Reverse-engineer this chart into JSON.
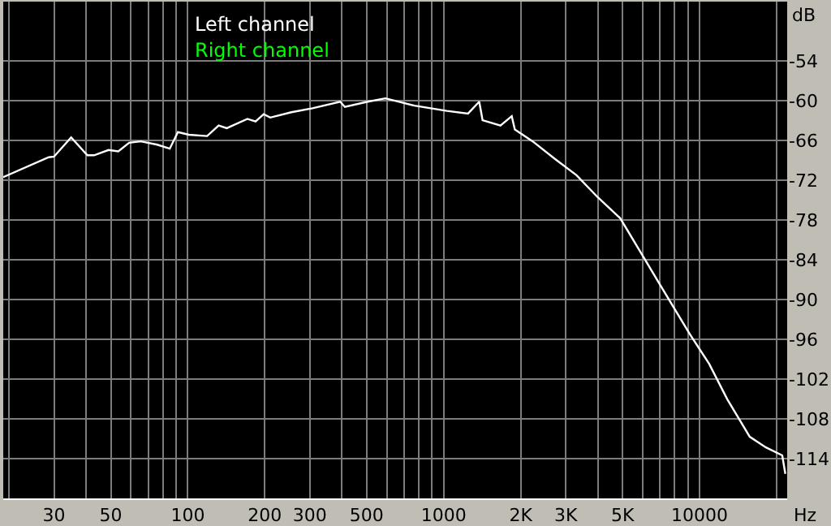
{
  "chart_data": {
    "type": "line",
    "xlabel": "Hz",
    "ylabel": "dB",
    "log": "x",
    "grid": true,
    "legend": "top left",
    "marker": "none",
    "line_style": "solid",
    "xlim": [
      19,
      22000
    ],
    "ylim": [
      -120,
      -45
    ],
    "xticks": [
      {
        "value": 20,
        "label": null
      },
      30,
      {
        "value": 40,
        "label": null
      },
      50,
      {
        "value": 60,
        "label": null
      },
      {
        "value": 70,
        "label": null
      },
      {
        "value": 80,
        "label": null
      },
      {
        "value": 90,
        "label": null
      },
      100,
      200,
      300,
      {
        "value": 400,
        "label": null
      },
      500,
      {
        "value": 600,
        "label": null
      },
      {
        "value": 700,
        "label": null
      },
      {
        "value": 800,
        "label": null
      },
      {
        "value": 900,
        "label": null
      },
      1000,
      {
        "value": 2000,
        "label": "2K"
      },
      {
        "value": 3000,
        "label": "3K"
      },
      {
        "value": 4000,
        "label": null
      },
      {
        "value": 5000,
        "label": "5K"
      },
      {
        "value": 6000,
        "label": null
      },
      {
        "value": 7000,
        "label": null
      },
      {
        "value": 8000,
        "label": null
      },
      {
        "value": 9000,
        "label": null
      },
      10000,
      {
        "value": 20000,
        "label": null
      }
    ],
    "yticks": [
      -54,
      -60,
      -66,
      -72,
      -78,
      -84,
      -90,
      -96,
      -102,
      -108,
      -114
    ],
    "x": [
      19,
      28.6,
      30,
      35,
      40.5,
      43,
      49,
      53.5,
      59,
      65.5,
      76,
      85,
      91.5,
      101,
      119,
      132,
      142,
      171,
      184,
      198,
      210,
      254,
      307,
      394,
      411,
      505,
      592,
      769,
      1030,
      1245,
      1377,
      1419,
      1667,
      1845,
      1897,
      2228,
      2733,
      3305,
      3992,
      4897,
      5918,
      7149,
      9160,
      10910,
      12820,
      15710,
      18170,
      21040,
      21640
    ],
    "series": [
      {
        "name": "Right channel",
        "color": "#00ff00",
        "values": [
          null,
          null,
          null,
          null,
          null,
          null,
          null,
          null,
          null,
          null,
          null,
          null,
          null,
          null,
          null,
          null,
          null,
          null,
          null,
          null,
          null,
          null,
          null,
          null,
          null,
          null,
          null,
          null,
          null,
          null,
          null,
          null,
          null,
          null,
          null,
          null,
          null,
          null,
          null,
          null,
          null,
          null,
          null,
          null,
          null,
          null,
          null,
          null,
          null
        ]
      },
      {
        "name": "Left channel",
        "color": "#ffffff",
        "values": [
          -71.5,
          -68.5,
          -68.4,
          -65.5,
          -68.2,
          -68.2,
          -67.4,
          -67.6,
          -66.3,
          -66.1,
          -66.6,
          -67.2,
          -64.7,
          -65.1,
          -65.3,
          -63.7,
          -64.1,
          -62.7,
          -63.1,
          -62.0,
          -62.5,
          -61.7,
          -61.1,
          -60.1,
          -60.9,
          -60.1,
          -59.6,
          -60.7,
          -61.5,
          -61.9,
          -60.1,
          -62.9,
          -63.7,
          -62.3,
          -64.3,
          -66.1,
          -68.8,
          -71.2,
          -74.5,
          -77.7,
          -83.0,
          -88.3,
          -95.2,
          -99.7,
          -105.0,
          -110.7,
          -112.3,
          -113.5,
          -116.3
        ]
      }
    ]
  }
}
